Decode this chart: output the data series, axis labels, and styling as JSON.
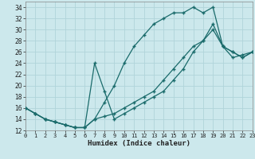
{
  "xlabel": "Humidex (Indice chaleur)",
  "background_color": "#cce8ec",
  "grid_color": "#b0d4da",
  "line_color": "#1a6b6b",
  "series": {
    "line1_x": [
      0,
      1,
      2,
      3,
      4,
      5,
      6,
      7,
      8,
      9,
      10,
      11,
      12,
      13,
      14,
      15,
      16,
      17,
      18,
      19,
      20,
      21,
      22,
      23
    ],
    "line1_y": [
      16,
      15,
      14,
      13.5,
      13,
      12.5,
      12.5,
      14,
      17,
      20,
      24,
      27,
      29,
      31,
      32,
      33,
      33,
      34,
      33,
      34,
      27,
      26,
      25,
      26
    ],
    "line2_x": [
      0,
      1,
      2,
      3,
      4,
      5,
      6,
      7,
      8,
      9,
      10,
      11,
      12,
      13,
      14,
      15,
      16,
      17,
      18,
      19,
      20,
      21,
      22,
      23
    ],
    "line2_y": [
      16,
      15,
      14,
      13.5,
      13,
      12.5,
      12.5,
      24,
      19,
      14,
      15,
      16,
      17,
      18,
      19,
      21,
      23,
      26,
      28,
      31,
      27,
      26,
      25,
      26
    ],
    "line3_x": [
      0,
      1,
      2,
      3,
      4,
      5,
      6,
      7,
      8,
      9,
      10,
      11,
      12,
      13,
      14,
      15,
      16,
      17,
      18,
      19,
      20,
      21,
      22,
      23
    ],
    "line3_y": [
      16,
      15,
      14,
      13.5,
      13,
      12.5,
      12.5,
      14,
      14.5,
      15,
      16,
      17,
      18,
      19,
      21,
      23,
      25,
      27,
      28,
      30,
      27,
      25,
      25.5,
      26
    ]
  },
  "xlim": [
    0,
    23
  ],
  "ylim": [
    12,
    35
  ],
  "yticks": [
    12,
    14,
    16,
    18,
    20,
    22,
    24,
    26,
    28,
    30,
    32,
    34
  ],
  "xticks": [
    0,
    1,
    2,
    3,
    4,
    5,
    6,
    7,
    8,
    9,
    10,
    11,
    12,
    13,
    14,
    15,
    16,
    17,
    18,
    19,
    20,
    21,
    22,
    23
  ],
  "marker": "+",
  "markersize": 3,
  "linewidth": 0.9
}
